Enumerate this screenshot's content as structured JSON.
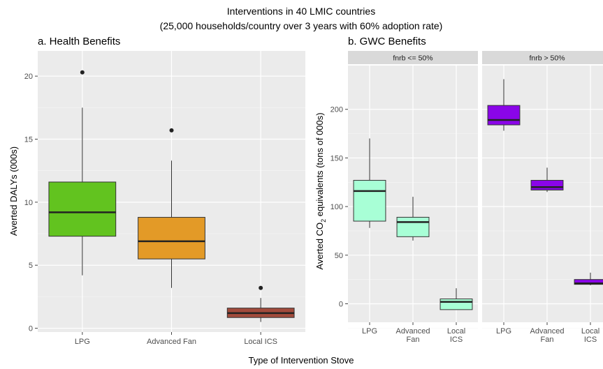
{
  "figure": {
    "title_line1": "Interventions in 40 LMIC countries",
    "title_line2": "(25,000 households/country over 3 years with 60% adoption rate)",
    "shared_xlabel": "Type of Intervention Stove"
  },
  "colors": {
    "panel_bg": "#ebebeb",
    "grid": "#ffffff",
    "strip_bg": "#d9d9d9",
    "lpg_fill": "#62c31f",
    "fan_fill": "#e39a27",
    "ics_fill": "#a24b3c",
    "gwc_low_fill": "#a8ffd6",
    "gwc_high_fill": "#8a05e8",
    "box_line": "#333333"
  },
  "chart_data": [
    {
      "type": "box",
      "title": "a. Health Benefits",
      "xlabel": "",
      "ylabel": "Averted DALYs (000s)",
      "ylim": [
        -0.3,
        22
      ],
      "yticks": [
        0,
        5,
        10,
        15,
        20
      ],
      "grid": true,
      "categories": [
        "LPG",
        "Advanced Fan",
        "Local ICS"
      ],
      "boxes": [
        {
          "category": "LPG",
          "fill": "#62c31f",
          "whisker_low": 4.2,
          "q1": 7.3,
          "median": 9.2,
          "q3": 11.6,
          "whisker_high": 17.5,
          "outliers": [
            20.3
          ]
        },
        {
          "category": "Advanced Fan",
          "fill": "#e39a27",
          "whisker_low": 3.2,
          "q1": 5.5,
          "median": 6.9,
          "q3": 8.8,
          "whisker_high": 13.3,
          "outliers": [
            15.7
          ]
        },
        {
          "category": "Local ICS",
          "fill": "#a24b3c",
          "whisker_low": 0.5,
          "q1": 0.85,
          "median": 1.2,
          "q3": 1.6,
          "whisker_high": 2.4,
          "outliers": [
            3.2
          ]
        }
      ]
    },
    {
      "type": "box",
      "title": "b. GWC Benefits",
      "xlabel": "",
      "ylabel": "Averted CO2 equivalents (tons of 000s)",
      "ylim": [
        -19,
        245
      ],
      "yticks": [
        0,
        50,
        100,
        150,
        200
      ],
      "grid": true,
      "facets": [
        {
          "label": "fnrb <= 50%",
          "categories": [
            "LPG",
            "Advanced\nFan",
            "Local\nICS"
          ],
          "boxes": [
            {
              "category": "LPG",
              "fill": "#a8ffd6",
              "whisker_low": 78,
              "q1": 85,
              "median": 116,
              "q3": 127,
              "whisker_high": 170,
              "outliers": []
            },
            {
              "category": "Advanced Fan",
              "fill": "#a8ffd6",
              "whisker_low": 65,
              "q1": 69,
              "median": 84,
              "q3": 89,
              "whisker_high": 110,
              "outliers": []
            },
            {
              "category": "Local ICS",
              "fill": "#a8ffd6",
              "whisker_low": -6,
              "q1": -6,
              "median": 2,
              "q3": 5,
              "whisker_high": 16,
              "outliers": []
            }
          ]
        },
        {
          "label": "fnrb > 50%",
          "categories": [
            "LPG",
            "Advanced\nFan",
            "Local\nICS"
          ],
          "boxes": [
            {
              "category": "LPG",
              "fill": "#8a05e8",
              "whisker_low": 178,
              "q1": 184,
              "median": 189,
              "q3": 204,
              "whisker_high": 231,
              "outliers": []
            },
            {
              "category": "Advanced Fan",
              "fill": "#8a05e8",
              "whisker_low": 115,
              "q1": 117,
              "median": 120,
              "q3": 127,
              "whisker_high": 140,
              "outliers": []
            },
            {
              "category": "Local ICS",
              "fill": "#8a05e8",
              "whisker_low": 19,
              "q1": 20,
              "median": 21,
              "q3": 25,
              "whisker_high": 32,
              "outliers": []
            }
          ]
        }
      ]
    }
  ]
}
